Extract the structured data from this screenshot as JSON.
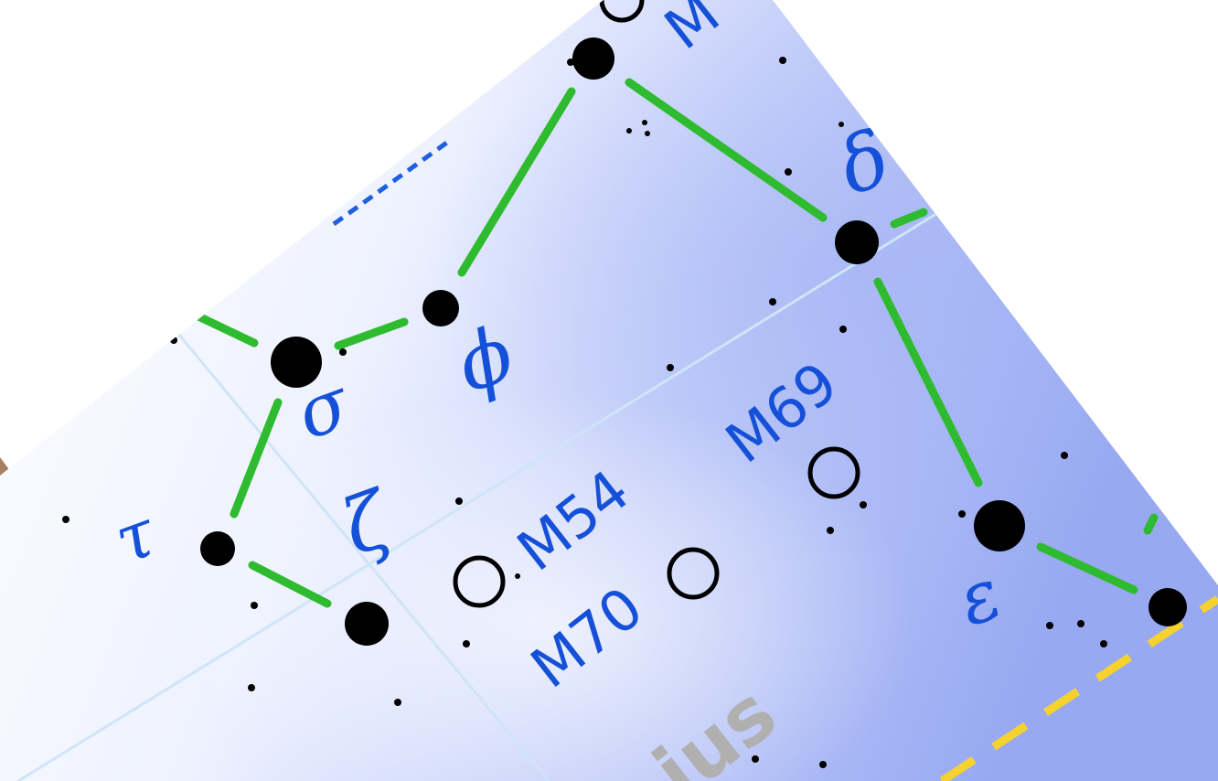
{
  "map": {
    "constellation_label": "ius",
    "star_labels": {
      "phi": "ϕ",
      "sigma": "σ",
      "tau": "τ",
      "zeta": "ζ",
      "delta": "δ",
      "epsilon": "ε"
    },
    "messier_labels": {
      "m54": "M54",
      "m69": "M69",
      "m70": "M70",
      "top_partial": "M"
    },
    "colors": {
      "sky_light": "#f4f7ff",
      "sky_blue": "#aebcf6",
      "constellation_line": "#2fbb2f",
      "label_blue": "#1450d8",
      "grid_line": "#cfe5f7",
      "ecliptic": "#f5d22e",
      "constellation_name": "#b0b0b0",
      "star": "#000000",
      "background_photo": "#9a7456"
    },
    "icons": {
      "star": "filled-circle",
      "cluster": "open-circle"
    }
  }
}
